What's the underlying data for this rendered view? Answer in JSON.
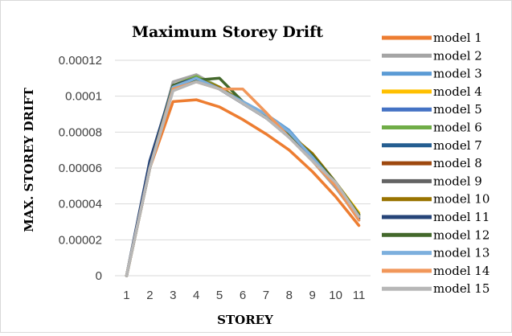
{
  "chart_data": {
    "type": "line",
    "title": "Maximum Storey Drift",
    "xlabel": "STOREY",
    "ylabel": "MAX. STOREY DRIFT",
    "ylim": [
      0,
      0.00012
    ],
    "yticks": [
      "0",
      "0.00002",
      "0.00004",
      "0.00006",
      "0.00008",
      "0.0001",
      "0.00012"
    ],
    "categories": [
      "1",
      "2",
      "3",
      "4",
      "5",
      "6",
      "7",
      "8",
      "9",
      "10",
      "11"
    ],
    "grid": true,
    "legend_position": "right",
    "series": [
      {
        "name": "model 1",
        "color": "#ED7D31",
        "values": [
          0,
          6e-05,
          9.7e-05,
          9.8e-05,
          9.4e-05,
          8.7e-05,
          7.9e-05,
          7e-05,
          5.8e-05,
          4.4e-05,
          2.8e-05
        ]
      },
      {
        "name": "model 2",
        "color": "#A5A5A5",
        "values": [
          0,
          6e-05,
          0.000108,
          0.000112,
          0.000105,
          9.7e-05,
          8.8e-05,
          7.7e-05,
          6.4e-05,
          4.9e-05,
          3.2e-05
        ]
      },
      {
        "name": "model 3",
        "color": "#5B9BD5",
        "values": [
          0,
          6e-05,
          0.000105,
          0.00011,
          0.000104,
          9.7e-05,
          9e-05,
          8.1e-05,
          6.6e-05,
          5.1e-05,
          3.3e-05
        ]
      },
      {
        "name": "model 4",
        "color": "#FFC000",
        "values": [
          0,
          6e-05,
          0.000106,
          0.000111,
          0.000105,
          9.7e-05,
          8.9e-05,
          7.9e-05,
          6.8e-05,
          5.2e-05,
          3.5e-05
        ]
      },
      {
        "name": "model 5",
        "color": "#4472C4",
        "values": [
          0,
          6e-05,
          0.000106,
          0.00011,
          0.000104,
          9.6e-05,
          8.8e-05,
          7.8e-05,
          6.6e-05,
          5.1e-05,
          3.3e-05
        ]
      },
      {
        "name": "model 6",
        "color": "#70AD47",
        "values": [
          0,
          6e-05,
          0.000106,
          0.000111,
          0.000105,
          9.7e-05,
          8.9e-05,
          7.9e-05,
          6.7e-05,
          5.2e-05,
          3.4e-05
        ]
      },
      {
        "name": "model 7",
        "color": "#255E91",
        "values": [
          0,
          6.3e-05,
          0.000106,
          0.00011,
          0.000104,
          9.6e-05,
          8.8e-05,
          7.8e-05,
          6.5e-05,
          5e-05,
          3.2e-05
        ]
      },
      {
        "name": "model 8",
        "color": "#9E480E",
        "values": [
          0,
          6e-05,
          0.000106,
          0.00011,
          0.000104,
          9.6e-05,
          8.8e-05,
          7.8e-05,
          6.6e-05,
          5.1e-05,
          3.3e-05
        ]
      },
      {
        "name": "model 9",
        "color": "#636363",
        "values": [
          0,
          6e-05,
          0.000105,
          0.000109,
          0.000104,
          9.6e-05,
          8.8e-05,
          7.8e-05,
          6.6e-05,
          5.2e-05,
          3.3e-05
        ]
      },
      {
        "name": "model 10",
        "color": "#997300",
        "values": [
          0,
          6e-05,
          0.000106,
          0.00011,
          0.000105,
          9.7e-05,
          8.9e-05,
          7.9e-05,
          6.8e-05,
          5.2e-05,
          3.4e-05
        ]
      },
      {
        "name": "model 11",
        "color": "#264478",
        "values": [
          0,
          6.4e-05,
          0.000106,
          0.00011,
          0.000104,
          9.6e-05,
          8.8e-05,
          7.8e-05,
          6.5e-05,
          5e-05,
          3.1e-05
        ]
      },
      {
        "name": "model 12",
        "color": "#43682B",
        "values": [
          0,
          6e-05,
          0.000106,
          0.000109,
          0.00011,
          9.7e-05,
          8.9e-05,
          7.9e-05,
          6.7e-05,
          5.2e-05,
          3.4e-05
        ]
      },
      {
        "name": "model 13",
        "color": "#7CAFDD",
        "values": [
          0,
          6e-05,
          0.000105,
          0.00011,
          0.000104,
          9.7e-05,
          9e-05,
          8e-05,
          6.6e-05,
          5.1e-05,
          3.3e-05
        ]
      },
      {
        "name": "model 14",
        "color": "#F1975A",
        "values": [
          0,
          6e-05,
          0.000104,
          0.000108,
          0.000104,
          0.000104,
          9.1e-05,
          7.7e-05,
          6.4e-05,
          5e-05,
          3.1e-05
        ]
      },
      {
        "name": "model 15",
        "color": "#B7B7B7",
        "values": [
          0,
          6e-05,
          0.000103,
          0.000108,
          0.000104,
          9.6e-05,
          8.8e-05,
          7.7e-05,
          6.4e-05,
          5.2e-05,
          3.3e-05
        ]
      }
    ]
  }
}
